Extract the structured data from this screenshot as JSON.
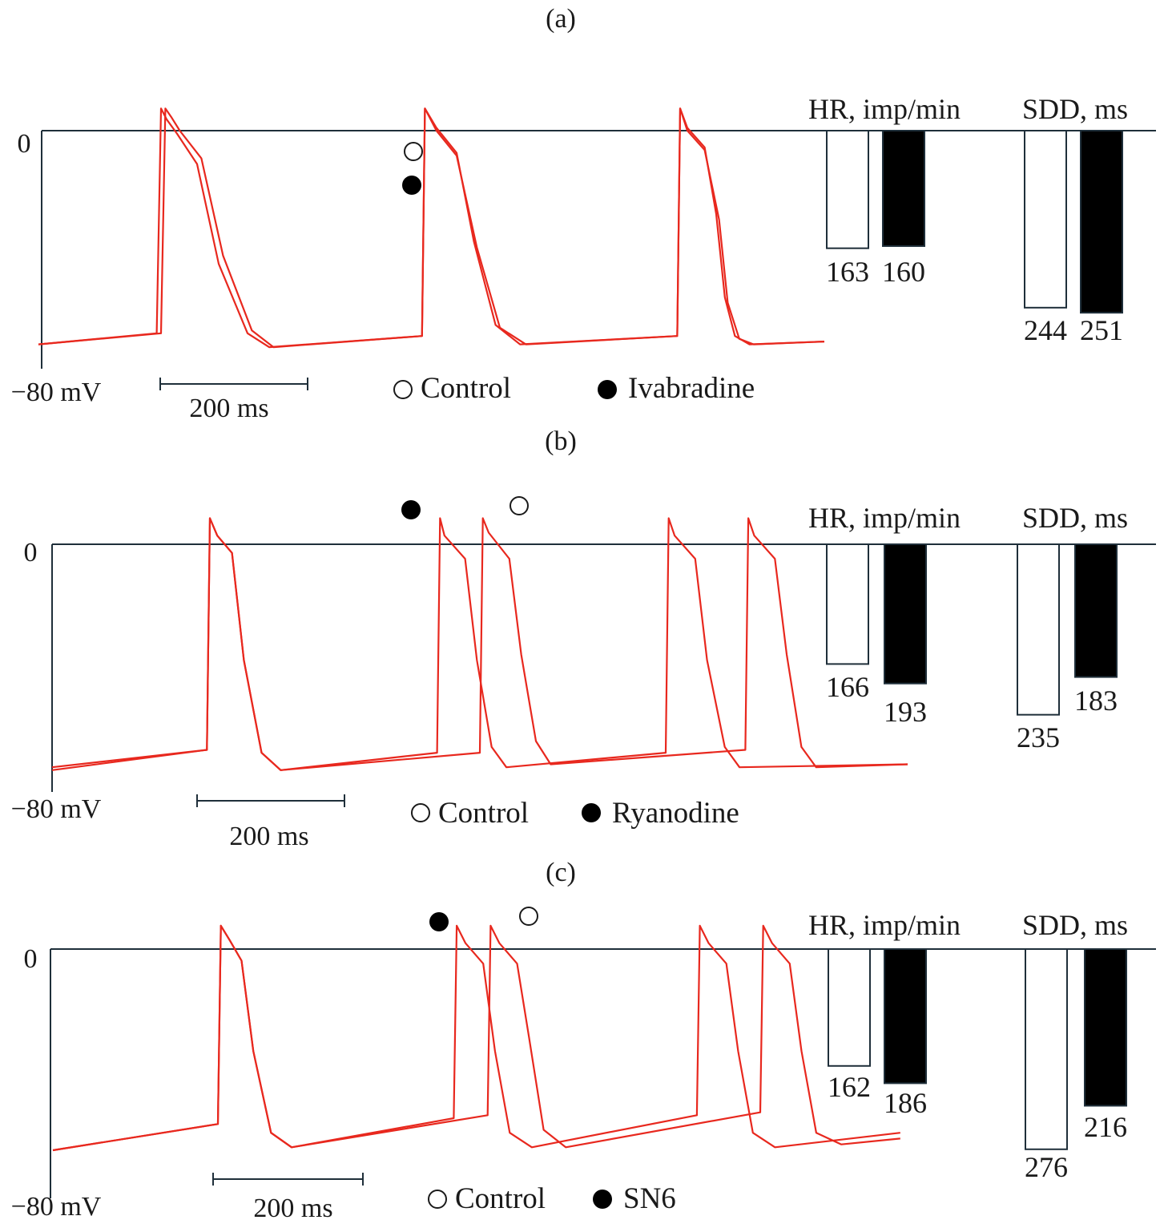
{
  "colors": {
    "trace": "#e8281e",
    "axis": "#1f2f3a",
    "bar_control": "#ffffff",
    "bar_drug": "#000000",
    "text": "#1a1a1a"
  },
  "chart_data": [
    {
      "type": "line",
      "panel_label": "(a)",
      "y_zero_label": "0",
      "y_min_label": "−80 mV",
      "scale_bar_label": "200 ms",
      "legend": {
        "control_label": "Control",
        "drug_label": "Ivabradine"
      },
      "bar_titles": {
        "hr": "HR, imp/min",
        "sdd": "SDD, ms"
      },
      "hr": {
        "control": 163,
        "drug": 160
      },
      "sdd": {
        "control": 244,
        "drug": 251
      },
      "traces": {
        "control": [
          [
            0,
            -77
          ],
          [
            85,
            -73
          ],
          [
            88,
            8
          ],
          [
            92,
            5
          ],
          [
            98,
            0
          ],
          [
            113,
            -10
          ],
          [
            128,
            -45
          ],
          [
            148,
            -72
          ],
          [
            163,
            -78
          ],
          [
            266,
            -74
          ],
          [
            268,
            8
          ],
          [
            276,
            1
          ],
          [
            290,
            -8
          ],
          [
            302,
            -40
          ],
          [
            317,
            -70
          ],
          [
            334,
            -77
          ],
          [
            443,
            -74
          ],
          [
            445,
            8
          ],
          [
            450,
            1
          ],
          [
            462,
            -6
          ],
          [
            470,
            -30
          ],
          [
            476,
            -60
          ],
          [
            483,
            -74
          ],
          [
            493,
            -77
          ],
          [
            545,
            -76
          ]
        ],
        "drug": [
          [
            0,
            -77
          ],
          [
            82,
            -73
          ],
          [
            85,
            8
          ],
          [
            89,
            4
          ],
          [
            96,
            -1
          ],
          [
            110,
            -12
          ],
          [
            125,
            -48
          ],
          [
            145,
            -73
          ],
          [
            160,
            -78
          ],
          [
            266,
            -74
          ],
          [
            268,
            8
          ],
          [
            276,
            0
          ],
          [
            290,
            -9
          ],
          [
            304,
            -42
          ],
          [
            320,
            -71
          ],
          [
            338,
            -77
          ],
          [
            443,
            -74
          ],
          [
            445,
            8
          ],
          [
            450,
            0
          ],
          [
            462,
            -7
          ],
          [
            472,
            -32
          ],
          [
            478,
            -62
          ],
          [
            486,
            -75
          ],
          [
            496,
            -77
          ],
          [
            545,
            -76
          ]
        ]
      }
    },
    {
      "type": "line",
      "panel_label": "(b)",
      "y_zero_label": "0",
      "y_min_label": "−80 mV",
      "scale_bar_label": "200 ms",
      "legend": {
        "control_label": "Control",
        "drug_label": "Ryanodine"
      },
      "bar_titles": {
        "hr": "HR, imp/min",
        "sdd": "SDD, ms"
      },
      "hr": {
        "control": 166,
        "drug": 193
      },
      "sdd": {
        "control": 235,
        "drug": 183
      },
      "traces": {
        "control": [
          [
            0,
            -77
          ],
          [
            105,
            -71
          ],
          [
            107,
            9
          ],
          [
            112,
            3
          ],
          [
            122,
            -3
          ],
          [
            130,
            -40
          ],
          [
            142,
            -72
          ],
          [
            155,
            -78
          ],
          [
            290,
            -72
          ],
          [
            292,
            9
          ],
          [
            296,
            4
          ],
          [
            310,
            -5
          ],
          [
            318,
            -38
          ],
          [
            328,
            -68
          ],
          [
            338,
            -76
          ],
          [
            470,
            -71
          ],
          [
            472,
            9
          ],
          [
            476,
            3
          ],
          [
            490,
            -5
          ],
          [
            498,
            -38
          ],
          [
            508,
            -70
          ],
          [
            518,
            -77
          ],
          [
            580,
            -76
          ]
        ],
        "drug": [
          [
            0,
            -78
          ],
          [
            105,
            -71
          ],
          [
            107,
            9
          ],
          [
            112,
            3
          ],
          [
            122,
            -3
          ],
          [
            130,
            -40
          ],
          [
            142,
            -72
          ],
          [
            155,
            -78
          ],
          [
            261,
            -72
          ],
          [
            263,
            9
          ],
          [
            266,
            3
          ],
          [
            280,
            -5
          ],
          [
            288,
            -40
          ],
          [
            298,
            -70
          ],
          [
            308,
            -77
          ],
          [
            416,
            -72
          ],
          [
            418,
            9
          ],
          [
            422,
            3
          ],
          [
            436,
            -5
          ],
          [
            444,
            -40
          ],
          [
            456,
            -70
          ],
          [
            466,
            -77
          ],
          [
            580,
            -76
          ]
        ]
      }
    },
    {
      "type": "line",
      "panel_label": "(c)",
      "y_zero_label": "0",
      "y_min_label": "−80 mV",
      "scale_bar_label": "200 ms",
      "legend": {
        "control_label": "Control",
        "drug_label": "SN6"
      },
      "bar_titles": {
        "hr": "HR, imp/min",
        "sdd": "SDD, ms"
      },
      "hr": {
        "control": 162,
        "drug": 186
      },
      "sdd": {
        "control": 276,
        "drug": 216
      },
      "traces": {
        "control": [
          [
            0,
            -69
          ],
          [
            112,
            -60
          ],
          [
            114,
            8
          ],
          [
            120,
            3
          ],
          [
            128,
            -4
          ],
          [
            136,
            -35
          ],
          [
            148,
            -63
          ],
          [
            162,
            -68
          ],
          [
            295,
            -57
          ],
          [
            297,
            8
          ],
          [
            303,
            2
          ],
          [
            315,
            -5
          ],
          [
            323,
            -30
          ],
          [
            333,
            -62
          ],
          [
            348,
            -68
          ],
          [
            480,
            -56
          ],
          [
            482,
            8
          ],
          [
            488,
            2
          ],
          [
            500,
            -5
          ],
          [
            508,
            -35
          ],
          [
            518,
            -63
          ],
          [
            535,
            -67
          ],
          [
            575,
            -65
          ]
        ],
        "drug": [
          [
            0,
            -69
          ],
          [
            112,
            -60
          ],
          [
            114,
            8
          ],
          [
            120,
            3
          ],
          [
            128,
            -4
          ],
          [
            136,
            -35
          ],
          [
            148,
            -63
          ],
          [
            162,
            -68
          ],
          [
            272,
            -58
          ],
          [
            274,
            8
          ],
          [
            280,
            2
          ],
          [
            292,
            -5
          ],
          [
            300,
            -35
          ],
          [
            310,
            -63
          ],
          [
            325,
            -68
          ],
          [
            437,
            -57
          ],
          [
            439,
            8
          ],
          [
            445,
            2
          ],
          [
            457,
            -5
          ],
          [
            465,
            -35
          ],
          [
            475,
            -63
          ],
          [
            490,
            -68
          ],
          [
            575,
            -63
          ]
        ]
      }
    }
  ]
}
